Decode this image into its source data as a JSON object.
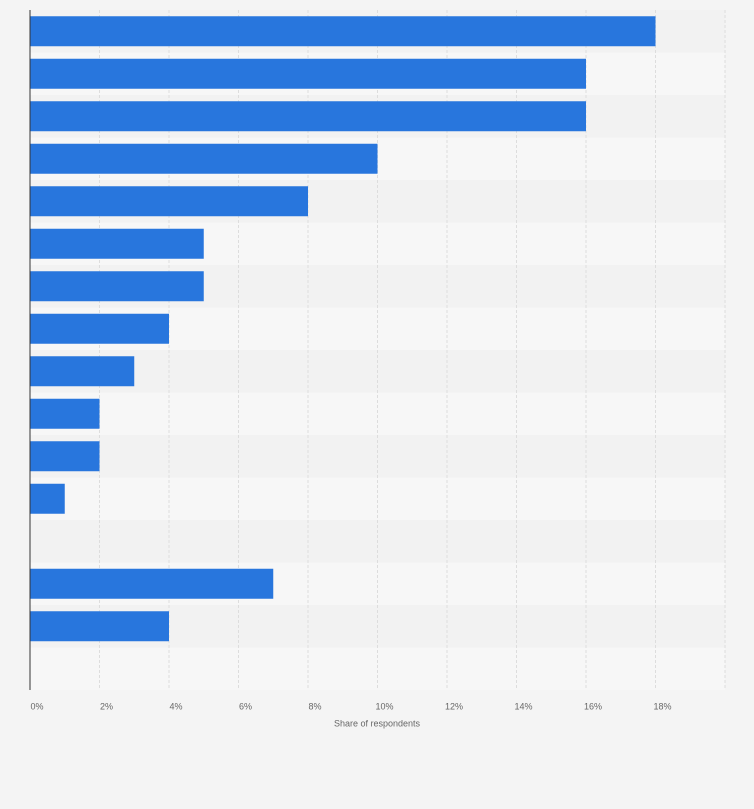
{
  "chart_data": {
    "type": "hbar",
    "categories": [
      null,
      null,
      null,
      null,
      null,
      null,
      null,
      null,
      null,
      null,
      null,
      null,
      null,
      null,
      null,
      null
    ],
    "values": [
      18,
      16,
      16,
      10,
      8,
      5,
      5,
      4,
      3,
      2,
      2,
      1,
      null,
      7,
      4,
      null
    ],
    "color": "#2876dd",
    "xlabel": "Share of respondents",
    "xlim": [
      0,
      20
    ],
    "xticks": [
      {
        "value": 0,
        "label": "0%"
      },
      {
        "value": 2,
        "label": "2%"
      },
      {
        "value": 4,
        "label": "4%"
      },
      {
        "value": 6,
        "label": "6%"
      },
      {
        "value": 8,
        "label": "8%"
      },
      {
        "value": 10,
        "label": "10%"
      },
      {
        "value": 12,
        "label": "12%"
      },
      {
        "value": 14,
        "label": "14%"
      },
      {
        "value": 16,
        "label": "16%"
      },
      {
        "value": 18,
        "label": "18%"
      }
    ],
    "grid": true
  }
}
